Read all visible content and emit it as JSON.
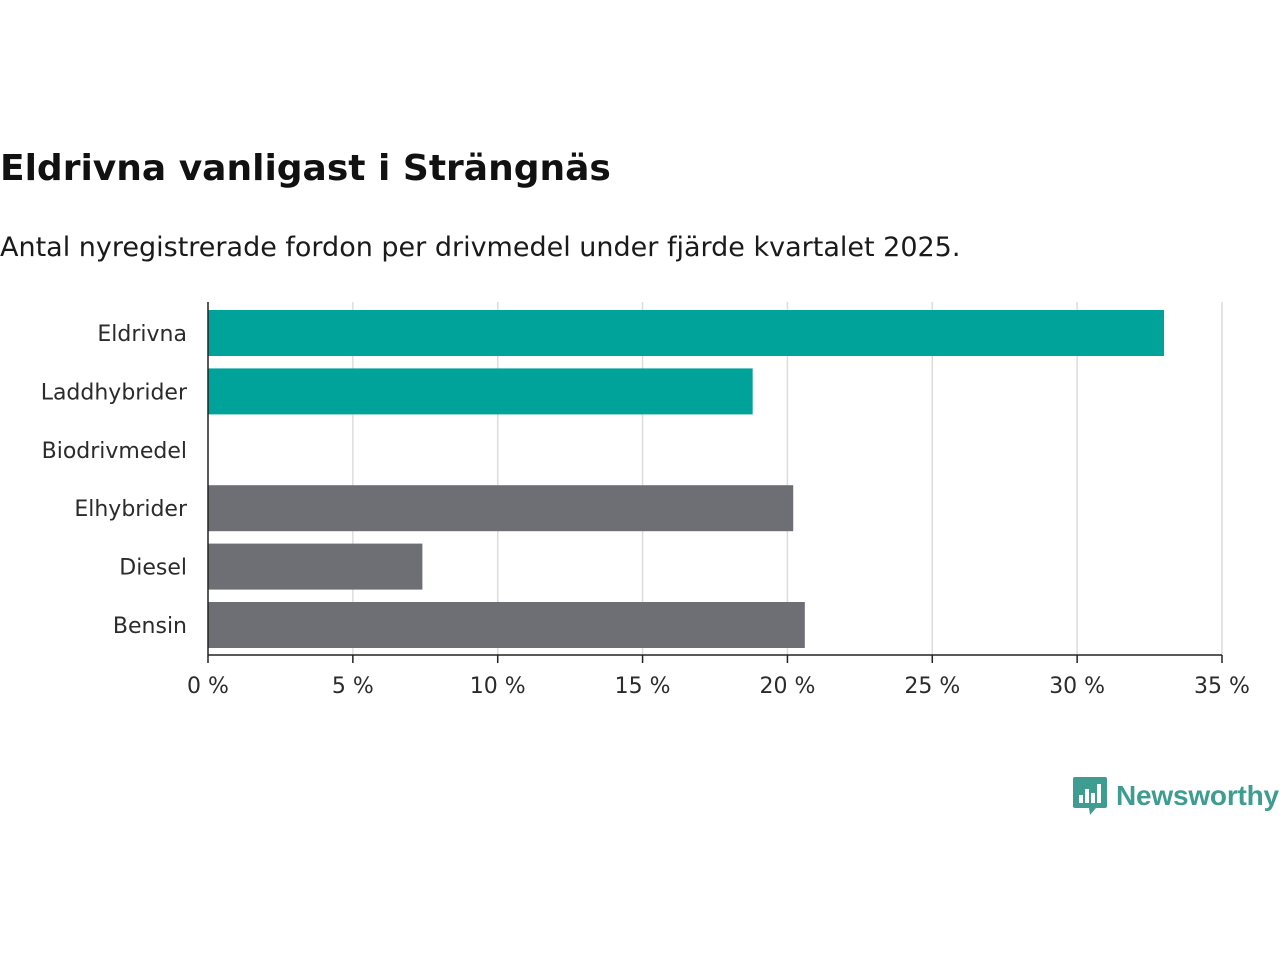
{
  "header": {
    "title": "Eldrivna vanligast i Strängnäs",
    "subtitle": "Antal nyregistrerade fordon per drivmedel under fjärde kvartalet 2025."
  },
  "chart_data": {
    "type": "bar",
    "orientation": "horizontal",
    "categories": [
      "Eldrivna",
      "Laddhybrider",
      "Biodrivmedel",
      "Elhybrider",
      "Diesel",
      "Bensin"
    ],
    "values": [
      33.0,
      18.8,
      0,
      20.2,
      7.4,
      20.6
    ],
    "colors": [
      "#00a39a",
      "#00a39a",
      "#6e6e75",
      "#6e6e75",
      "#6e6e75",
      "#6e6e75"
    ],
    "xlim": [
      0,
      35
    ],
    "xticks": [
      0,
      5,
      10,
      15,
      20,
      25,
      30,
      35
    ],
    "tick_labels": [
      "0 %",
      "5 %",
      "10 %",
      "15 %",
      "20 %",
      "25 %",
      "30 %",
      "35 %"
    ],
    "grid": true,
    "gridColor": "#dcdcdc",
    "axisColor": "#222222"
  },
  "branding": {
    "name": "Newsworthy",
    "color": "#3f9c91"
  }
}
